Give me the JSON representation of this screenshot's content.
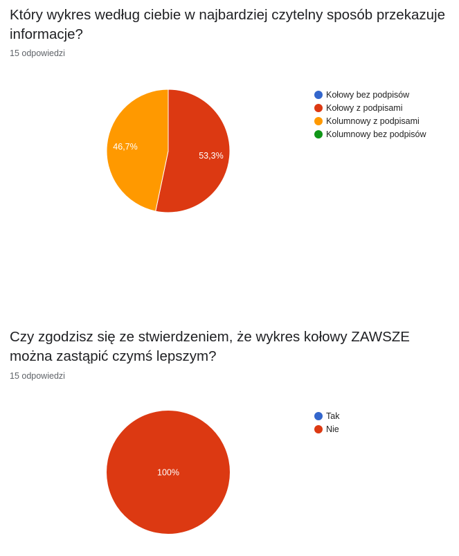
{
  "questions": [
    {
      "title": "Który wykres według ciebie w najbardziej czytelny sposób przekazuje informacje?",
      "responses": "15 odpowiedzi"
    },
    {
      "title": "Czy zgodzisz się ze stwierdzeniem, że wykres kołowy ZAWSZE można zastąpić czymś lepszym?",
      "responses": "15 odpowiedzi"
    }
  ],
  "chart_data": [
    {
      "type": "pie",
      "title": "Który wykres według ciebie w najbardziej czytelny sposób przekazuje informacje?",
      "legend_position": "right",
      "categories": [
        "Kołowy bez podpisów",
        "Kołowy z podpisami",
        "Kolumnowy z podpisami",
        "Kolumnowy bez podpisów"
      ],
      "values": [
        0,
        53.3,
        46.7,
        0
      ],
      "labels": [
        "",
        "53,3%",
        "46,7%",
        ""
      ],
      "colors": [
        "#3366cc",
        "#dc3912",
        "#ff9900",
        "#109618"
      ]
    },
    {
      "type": "pie",
      "title": "Czy zgodzisz się ze stwierdzeniem, że wykres kołowy ZAWSZE można zastąpić czymś lepszym?",
      "legend_position": "right",
      "categories": [
        "Tak",
        "Nie"
      ],
      "values": [
        0,
        100
      ],
      "labels": [
        "",
        "100%"
      ],
      "colors": [
        "#3366cc",
        "#dc3912"
      ]
    }
  ]
}
